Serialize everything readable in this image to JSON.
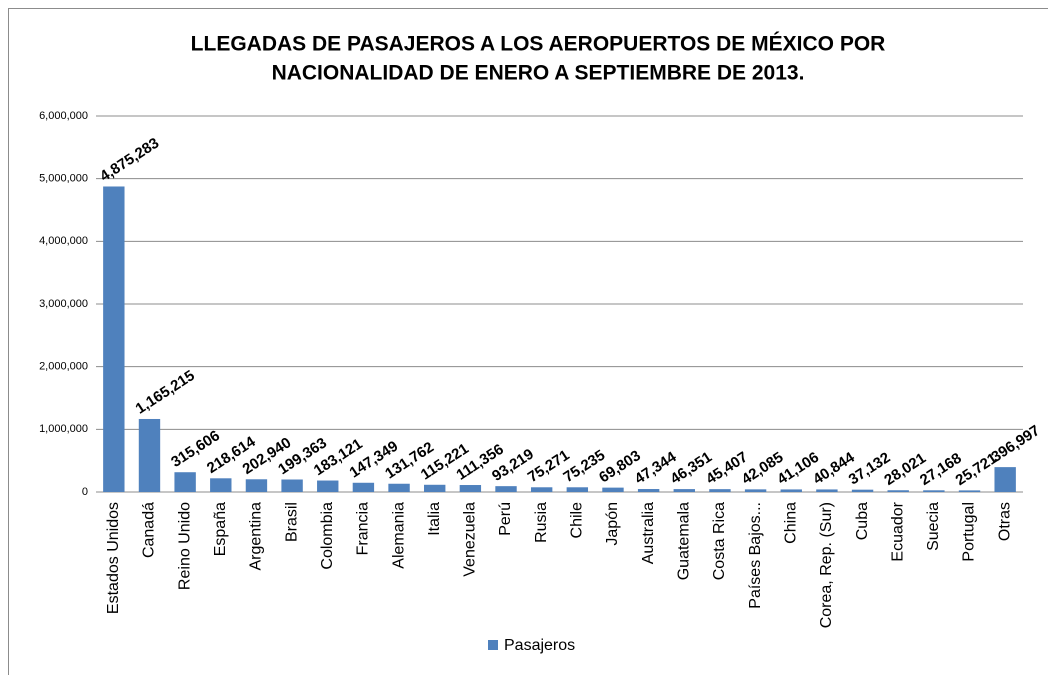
{
  "chart_data": {
    "type": "bar",
    "title": [
      "LLEGADAS DE PASAJEROS A LOS AEROPUERTOS DE MÉXICO POR",
      "NACIONALIDAD DE ENERO A SEPTIEMBRE DE 2013."
    ],
    "categories": [
      "Estados Unidos",
      "Canadá",
      "Reino Unido",
      "España",
      "Argentina",
      "Brasil",
      "Colombia",
      "Francia",
      "Alemania",
      "Italia",
      "Venezuela",
      "Perú",
      "Rusia",
      "Chile",
      "Japón",
      "Australia",
      "Guatemala",
      "Costa Rica",
      "Países Bajos...",
      "China",
      "Corea, Rep. (Sur)",
      "Cuba",
      "Ecuador",
      "Suecia",
      "Portugal",
      "Otras"
    ],
    "series": [
      {
        "name": "Pasajeros",
        "color": "#4f81bd",
        "values": [
          4875283,
          1165215,
          315606,
          218614,
          202940,
          199363,
          183121,
          147349,
          131762,
          115221,
          111356,
          93219,
          75271,
          75235,
          69803,
          47344,
          46351,
          45407,
          42085,
          41106,
          40844,
          37132,
          28021,
          27168,
          25721,
          396997
        ],
        "value_labels": [
          "4,875,283",
          "1,165,215",
          "315,606",
          "218,614",
          "202,940",
          "199,363",
          "183,121",
          "147,349",
          "131,762",
          "115,221",
          "111,356",
          "93,219",
          "75,271",
          "75,235",
          "69,803",
          "47,344",
          "46,351",
          "45,407",
          "42,085",
          "41,106",
          "40,844",
          "37,132",
          "28,021",
          "27,168",
          "25,721",
          "396,997"
        ]
      }
    ],
    "ylim": [
      0,
      6000000
    ],
    "yticks": [
      0,
      {
        "value": 1000000,
        "label": "1,000,000"
      },
      {
        "value": 2000000,
        "label": "2,000,000"
      },
      {
        "value": 3000000,
        "label": "3,000,000"
      },
      {
        "value": 4000000,
        "label": "4,000,000"
      },
      {
        "value": 5000000,
        "label": "5,000,000"
      },
      {
        "value": 6000000,
        "label": "6,000,000"
      }
    ],
    "grid": true,
    "legend": "bottom"
  }
}
